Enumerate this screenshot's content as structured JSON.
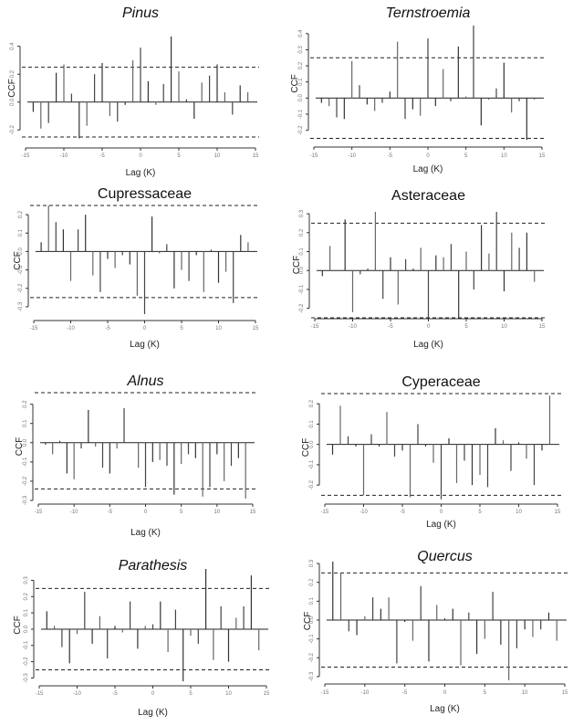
{
  "chart_data": [
    {
      "type": "bar",
      "subtype": "cross-correlation stem plot",
      "title": "Pinus",
      "title_italic": true,
      "xlabel": "Lag (K)",
      "ylabel": "CCF",
      "xlim": [
        -15,
        15
      ],
      "xticks": [
        -15,
        -10,
        -5,
        0,
        5,
        10,
        15
      ],
      "ylim": [
        -0.27,
        0.47
      ],
      "yticks": [
        "-0.2",
        "0.0",
        "0.2",
        "0.4"
      ],
      "ytick_values": [
        -0.2,
        0.0,
        0.2,
        0.4
      ],
      "confidence_limits": [
        0.25,
        -0.25
      ],
      "x": [
        -14,
        -13,
        -12,
        -11,
        -10,
        -9,
        -8,
        -7,
        -6,
        -5,
        -4,
        -3,
        -2,
        -1,
        0,
        1,
        2,
        3,
        4,
        5,
        6,
        7,
        8,
        9,
        10,
        11,
        12,
        13,
        14
      ],
      "values": [
        -0.07,
        -0.19,
        -0.15,
        0.21,
        0.27,
        0.06,
        -0.26,
        -0.17,
        0.2,
        0.28,
        -0.1,
        -0.14,
        -0.02,
        0.3,
        0.39,
        0.15,
        -0.02,
        0.13,
        0.47,
        0.22,
        0.02,
        -0.12,
        0.14,
        0.19,
        0.27,
        0.07,
        -0.09,
        0.12,
        0.07
      ]
    },
    {
      "type": "bar",
      "subtype": "cross-correlation stem plot",
      "title": "Ternstroemia",
      "title_italic": true,
      "xlabel": "Lag (K)",
      "ylabel": "CCF",
      "xlim": [
        -15,
        15
      ],
      "xticks": [
        -15,
        -10,
        -5,
        0,
        5,
        10,
        15
      ],
      "ylim": [
        -0.27,
        0.45
      ],
      "yticks": [
        "-0.2",
        "-0.1",
        "0.0",
        "0.1",
        "0.2",
        "0.3",
        "0.4"
      ],
      "ytick_values": [
        -0.2,
        -0.1,
        0.0,
        0.1,
        0.2,
        0.3,
        0.4
      ],
      "confidence_limits": [
        0.25,
        -0.25
      ],
      "x": [
        -14,
        -13,
        -12,
        -11,
        -10,
        -9,
        -8,
        -7,
        -6,
        -5,
        -4,
        -3,
        -2,
        -1,
        0,
        1,
        2,
        3,
        4,
        5,
        6,
        7,
        8,
        9,
        10,
        11,
        12,
        13,
        14
      ],
      "values": [
        -0.03,
        -0.05,
        -0.12,
        -0.13,
        0.23,
        0.08,
        -0.04,
        -0.08,
        -0.03,
        0.04,
        0.35,
        -0.13,
        -0.07,
        -0.11,
        0.37,
        -0.05,
        0.18,
        -0.02,
        0.32,
        0.01,
        0.45,
        -0.17,
        -0.01,
        0.06,
        0.22,
        -0.09,
        -0.02,
        -0.26,
        -0.01
      ]
    },
    {
      "type": "bar",
      "subtype": "cross-correlation stem plot",
      "title": "Cupressaceae",
      "title_italic": false,
      "xlabel": "Lag (K)",
      "ylabel": "CCF",
      "xlim": [
        -15,
        15
      ],
      "xticks": [
        -15,
        -10,
        -5,
        0,
        5,
        10,
        15
      ],
      "ylim": [
        -0.35,
        0.25
      ],
      "yticks": [
        "-0.3",
        "-0.2",
        "-0.1",
        "0.0",
        "0.1",
        "0.2"
      ],
      "ytick_values": [
        -0.3,
        -0.2,
        -0.1,
        0.0,
        0.1,
        0.2
      ],
      "confidence_limits": [
        0.25,
        -0.25
      ],
      "x": [
        -14,
        -13,
        -12,
        -11,
        -10,
        -9,
        -8,
        -7,
        -6,
        -5,
        -4,
        -3,
        -2,
        -1,
        0,
        1,
        2,
        3,
        4,
        5,
        6,
        7,
        8,
        9,
        10,
        11,
        12,
        13,
        14
      ],
      "values": [
        0.05,
        0.25,
        0.16,
        0.12,
        -0.16,
        0.12,
        0.2,
        -0.13,
        -0.22,
        -0.04,
        -0.09,
        -0.02,
        -0.07,
        -0.24,
        -0.34,
        0.19,
        -0.01,
        0.04,
        -0.2,
        -0.1,
        -0.16,
        -0.02,
        -0.22,
        0.01,
        -0.17,
        -0.11,
        -0.28,
        0.09,
        0.05
      ]
    },
    {
      "type": "bar",
      "subtype": "cross-correlation stem plot",
      "title": "Asteraceae",
      "title_italic": false,
      "xlabel": "Lag (K)",
      "ylabel": "CCF",
      "xlim": [
        -15,
        15
      ],
      "xticks": [
        -15,
        -10,
        -5,
        0,
        5,
        10,
        15
      ],
      "ylim": [
        -0.25,
        0.31
      ],
      "yticks": [
        "-0.2",
        "-0.1",
        "0.0",
        "0.1",
        "0.2",
        "0.3"
      ],
      "ytick_values": [
        -0.2,
        -0.1,
        0.0,
        0.1,
        0.2,
        0.3
      ],
      "confidence_limits": [
        0.25,
        -0.25
      ],
      "x": [
        -14,
        -13,
        -12,
        -11,
        -10,
        -9,
        -8,
        -7,
        -6,
        -5,
        -4,
        -3,
        -2,
        -1,
        0,
        1,
        2,
        3,
        4,
        5,
        6,
        7,
        8,
        9,
        10,
        11,
        12,
        13,
        14
      ],
      "values": [
        -0.03,
        0.13,
        0.0,
        0.27,
        -0.22,
        -0.02,
        0.01,
        0.31,
        -0.15,
        0.07,
        -0.18,
        0.06,
        0.01,
        0.12,
        -0.25,
        0.08,
        0.07,
        0.14,
        -0.25,
        0.1,
        -0.1,
        0.24,
        0.09,
        0.31,
        -0.11,
        0.2,
        0.12,
        0.2,
        -0.06
      ]
    },
    {
      "type": "bar",
      "subtype": "cross-correlation stem plot",
      "title": "Alnus",
      "title_italic": true,
      "xlabel": "Lag (K)",
      "ylabel": "CCF",
      "xlim": [
        -15,
        15
      ],
      "xticks": [
        -15,
        -10,
        -5,
        0,
        5,
        10,
        15
      ],
      "ylim": [
        -0.3,
        0.26
      ],
      "yticks": [
        "-0.3",
        "-0.2",
        "-0.1",
        "0.0",
        "0.1",
        "0.2"
      ],
      "ytick_values": [
        -0.3,
        -0.2,
        -0.1,
        0.0,
        0.1,
        0.2
      ],
      "confidence_limits": [
        0.26,
        -0.24
      ],
      "x": [
        -14,
        -13,
        -12,
        -11,
        -10,
        -9,
        -8,
        -7,
        -6,
        -5,
        -4,
        -3,
        -2,
        -1,
        0,
        1,
        2,
        3,
        4,
        5,
        6,
        7,
        8,
        9,
        10,
        11,
        12,
        13,
        14
      ],
      "values": [
        -0.01,
        -0.06,
        0.01,
        -0.16,
        -0.19,
        -0.03,
        0.17,
        -0.02,
        -0.13,
        -0.16,
        -0.03,
        0.18,
        0.0,
        -0.13,
        -0.23,
        -0.1,
        -0.09,
        -0.12,
        -0.27,
        -0.11,
        -0.06,
        -0.08,
        -0.28,
        -0.23,
        -0.06,
        -0.2,
        -0.12,
        -0.08,
        -0.29
      ]
    },
    {
      "type": "bar",
      "subtype": "cross-correlation stem plot",
      "title": "Cyperaceae",
      "title_italic": false,
      "xlabel": "Lag (K)",
      "ylabel": "CCF",
      "xlim": [
        -15,
        15
      ],
      "xticks": [
        -15,
        -10,
        -5,
        0,
        5,
        10,
        15
      ],
      "ylim": [
        -0.28,
        0.25
      ],
      "yticks": [
        "-0.2",
        "-0.1",
        "0.0",
        "0.1",
        "0.2"
      ],
      "ytick_values": [
        -0.2,
        -0.1,
        0.0,
        0.1,
        0.2
      ],
      "confidence_limits": [
        0.25,
        -0.25
      ],
      "x": [
        -14,
        -13,
        -12,
        -11,
        -10,
        -9,
        -8,
        -7,
        -6,
        -5,
        -4,
        -3,
        -2,
        -1,
        0,
        1,
        2,
        3,
        4,
        5,
        6,
        7,
        8,
        9,
        10,
        11,
        12,
        13,
        14
      ],
      "values": [
        -0.05,
        0.19,
        0.04,
        -0.01,
        -0.25,
        0.05,
        -0.01,
        0.16,
        -0.06,
        -0.03,
        -0.26,
        0.1,
        -0.01,
        -0.09,
        -0.27,
        0.03,
        -0.19,
        -0.08,
        -0.2,
        -0.15,
        -0.21,
        0.08,
        0.02,
        -0.13,
        0.01,
        -0.07,
        -0.2,
        -0.03,
        0.24
      ]
    },
    {
      "type": "bar",
      "subtype": "cross-correlation stem plot",
      "title": "Parathesis",
      "title_italic": true,
      "xlabel": "Lag (K)",
      "ylabel": "CCF",
      "xlim": [
        -15,
        15
      ],
      "xticks": [
        -15,
        -10,
        -5,
        0,
        5,
        10,
        15
      ],
      "ylim": [
        -0.32,
        0.37
      ],
      "yticks": [
        "-0.3",
        "-0.2",
        "-0.1",
        "0.0",
        "0.1",
        "0.2",
        "0.3"
      ],
      "ytick_values": [
        -0.3,
        -0.2,
        -0.1,
        0.0,
        0.1,
        0.2,
        0.3
      ],
      "confidence_limits": [
        0.25,
        -0.25
      ],
      "x": [
        -14,
        -13,
        -12,
        -11,
        -10,
        -9,
        -8,
        -7,
        -6,
        -5,
        -4,
        -3,
        -2,
        -1,
        0,
        1,
        2,
        3,
        4,
        5,
        6,
        7,
        8,
        9,
        10,
        11,
        12,
        13,
        14
      ],
      "values": [
        0.11,
        0.02,
        -0.11,
        -0.21,
        -0.03,
        0.23,
        -0.09,
        0.08,
        -0.18,
        0.02,
        -0.02,
        0.17,
        -0.12,
        0.02,
        0.03,
        0.17,
        -0.14,
        0.12,
        -0.32,
        -0.04,
        -0.09,
        0.37,
        -0.19,
        0.14,
        -0.2,
        0.07,
        0.14,
        0.33,
        -0.13
      ]
    },
    {
      "type": "bar",
      "subtype": "cross-correlation stem plot",
      "title": "Quercus",
      "title_italic": true,
      "xlabel": "Lag (K)",
      "ylabel": "CCF",
      "xlim": [
        -15,
        15
      ],
      "xticks": [
        -15,
        -10,
        -5,
        0,
        5,
        10,
        15
      ],
      "ylim": [
        -0.32,
        0.31
      ],
      "yticks": [
        "-0.3",
        "-0.2",
        "-0.1",
        "0.0",
        "0.1",
        "0.2",
        "0.3"
      ],
      "ytick_values": [
        -0.3,
        -0.2,
        -0.1,
        0.0,
        0.1,
        0.2,
        0.3
      ],
      "confidence_limits": [
        0.25,
        -0.25
      ],
      "x": [
        -14,
        -13,
        -12,
        -11,
        -10,
        -9,
        -8,
        -7,
        -6,
        -5,
        -4,
        -3,
        -2,
        -1,
        0,
        1,
        2,
        3,
        4,
        5,
        6,
        7,
        8,
        9,
        10,
        11,
        12,
        13,
        14
      ],
      "values": [
        0.31,
        0.25,
        -0.06,
        -0.08,
        0.02,
        0.12,
        0.06,
        0.12,
        -0.23,
        -0.01,
        -0.11,
        0.18,
        -0.22,
        0.08,
        0.01,
        0.06,
        -0.24,
        0.04,
        -0.18,
        -0.1,
        0.15,
        -0.13,
        -0.32,
        -0.15,
        -0.05,
        -0.09,
        -0.05,
        0.04,
        -0.11
      ]
    }
  ]
}
